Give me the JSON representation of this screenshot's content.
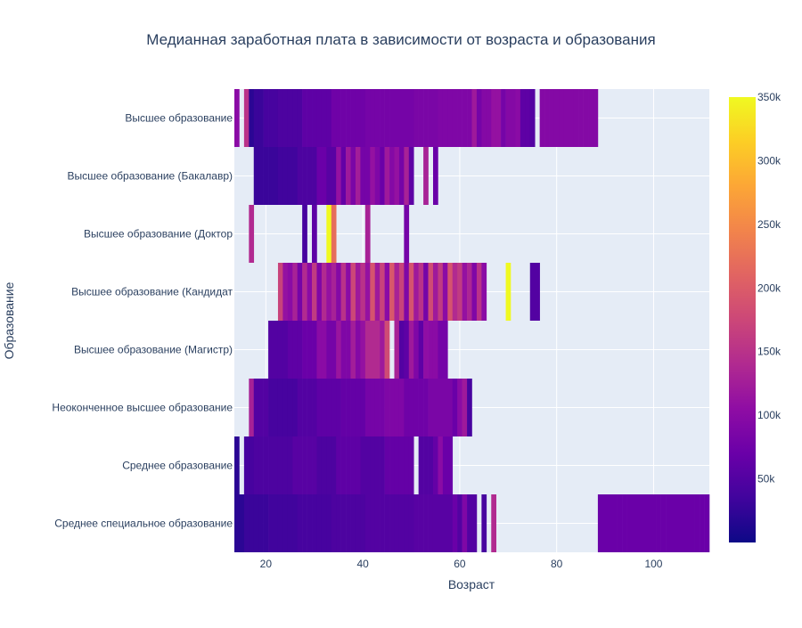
{
  "chart_data": {
    "type": "heatmap",
    "title": "Медианная заработная плата в зависимости от возраста и образования",
    "xlabel": "Возраст",
    "ylabel": "Образование",
    "xlim": [
      13.5,
      111.5
    ],
    "x_ticks": [
      20,
      40,
      60,
      80,
      100
    ],
    "categories": [
      "Высшее образование",
      "Высшее образование (Бакалавр)",
      "Высшее образование (Доктор",
      "Высшее образование (Кандидат",
      "Высшее образование (Магистр)",
      "Неоконченное высшее образование",
      "Среднее образование",
      "Среднее специальное образование"
    ],
    "colorbar": {
      "range": [
        0,
        350000
      ],
      "ticks": [
        50000,
        100000,
        150000,
        200000,
        250000,
        300000,
        350000
      ],
      "tick_labels": [
        "50k",
        "100k",
        "150k",
        "200k",
        "250k",
        "300k",
        "350k"
      ],
      "colorscale": "Plasma",
      "grid": true
    },
    "series": [
      {
        "segments": [
          [
            14,
            14,
            100000
          ],
          [
            16,
            16,
            150000
          ],
          [
            17,
            17,
            20000
          ],
          [
            18,
            19,
            30000
          ],
          [
            20,
            22,
            40000
          ],
          [
            23,
            27,
            45000
          ],
          [
            28,
            33,
            60000
          ],
          [
            34,
            40,
            75000
          ],
          [
            41,
            50,
            80000
          ],
          [
            51,
            55,
            85000
          ],
          [
            56,
            62,
            90000
          ],
          [
            63,
            63,
            120000
          ],
          [
            64,
            64,
            80000
          ],
          [
            65,
            66,
            95000
          ],
          [
            67,
            68,
            110000
          ],
          [
            69,
            69,
            80000
          ],
          [
            70,
            71,
            95000
          ],
          [
            72,
            72,
            100000
          ],
          [
            73,
            74,
            60000
          ],
          [
            75,
            75,
            50000
          ],
          [
            77,
            88,
            95000
          ]
        ]
      },
      {
        "segments": [
          [
            18,
            22,
            30000
          ],
          [
            23,
            26,
            35000
          ],
          [
            27,
            30,
            45000
          ],
          [
            31,
            32,
            70000
          ],
          [
            33,
            34,
            55000
          ],
          [
            35,
            35,
            110000
          ],
          [
            36,
            36,
            65000
          ],
          [
            37,
            37,
            120000
          ],
          [
            38,
            38,
            85000
          ],
          [
            39,
            39,
            125000
          ],
          [
            40,
            41,
            80000
          ],
          [
            42,
            42,
            110000
          ],
          [
            43,
            43,
            90000
          ],
          [
            44,
            44,
            70000
          ],
          [
            45,
            45,
            120000
          ],
          [
            46,
            46,
            95000
          ],
          [
            47,
            47,
            110000
          ],
          [
            48,
            48,
            80000
          ],
          [
            49,
            49,
            130000
          ],
          [
            50,
            50,
            60000
          ],
          [
            53,
            53,
            130000
          ],
          [
            55,
            55,
            70000
          ]
        ]
      },
      {
        "segments": [
          [
            17,
            17,
            140000
          ],
          [
            28,
            28,
            40000
          ],
          [
            30,
            30,
            60000
          ],
          [
            33,
            33,
            350000
          ],
          [
            34,
            34,
            220000
          ],
          [
            41,
            41,
            130000
          ],
          [
            49,
            49,
            80000
          ]
        ]
      },
      {
        "segments": [
          [
            23,
            23,
            170000
          ],
          [
            24,
            24,
            110000
          ],
          [
            25,
            25,
            100000
          ],
          [
            26,
            26,
            130000
          ],
          [
            27,
            27,
            80000
          ],
          [
            28,
            28,
            140000
          ],
          [
            29,
            29,
            100000
          ],
          [
            30,
            30,
            160000
          ],
          [
            31,
            31,
            90000
          ],
          [
            32,
            32,
            140000
          ],
          [
            33,
            33,
            110000
          ],
          [
            34,
            34,
            130000
          ],
          [
            35,
            35,
            95000
          ],
          [
            36,
            36,
            150000
          ],
          [
            37,
            37,
            100000
          ],
          [
            38,
            38,
            175000
          ],
          [
            39,
            39,
            120000
          ],
          [
            40,
            40,
            150000
          ],
          [
            41,
            41,
            110000
          ],
          [
            42,
            42,
            190000
          ],
          [
            43,
            43,
            120000
          ],
          [
            44,
            44,
            170000
          ],
          [
            45,
            45,
            100000
          ],
          [
            46,
            46,
            195000
          ],
          [
            47,
            47,
            130000
          ],
          [
            48,
            48,
            170000
          ],
          [
            49,
            49,
            90000
          ],
          [
            50,
            50,
            190000
          ],
          [
            51,
            51,
            120000
          ],
          [
            52,
            52,
            150000
          ],
          [
            53,
            53,
            80000
          ],
          [
            54,
            54,
            180000
          ],
          [
            55,
            55,
            120000
          ],
          [
            56,
            56,
            160000
          ],
          [
            57,
            57,
            100000
          ],
          [
            58,
            58,
            190000
          ],
          [
            59,
            59,
            140000
          ],
          [
            60,
            60,
            160000
          ],
          [
            61,
            61,
            110000
          ],
          [
            62,
            62,
            135000
          ],
          [
            63,
            63,
            90000
          ],
          [
            64,
            64,
            150000
          ],
          [
            65,
            65,
            100000
          ],
          [
            70,
            70,
            350000
          ],
          [
            75,
            76,
            50000
          ]
        ]
      },
      {
        "segments": [
          [
            21,
            24,
            50000
          ],
          [
            25,
            27,
            60000
          ],
          [
            28,
            30,
            70000
          ],
          [
            31,
            32,
            100000
          ],
          [
            33,
            34,
            80000
          ],
          [
            35,
            35,
            115000
          ],
          [
            36,
            37,
            90000
          ],
          [
            38,
            38,
            125000
          ],
          [
            39,
            39,
            95000
          ],
          [
            40,
            40,
            110000
          ],
          [
            41,
            43,
            140000
          ],
          [
            44,
            44,
            120000
          ],
          [
            45,
            45,
            180000
          ],
          [
            47,
            47,
            130000
          ],
          [
            48,
            48,
            50000
          ],
          [
            49,
            49,
            60000
          ],
          [
            50,
            50,
            120000
          ],
          [
            51,
            51,
            90000
          ],
          [
            52,
            52,
            60000
          ],
          [
            53,
            53,
            105000
          ],
          [
            54,
            55,
            100000
          ],
          [
            56,
            57,
            80000
          ]
        ]
      },
      {
        "segments": [
          [
            17,
            17,
            130000
          ],
          [
            18,
            20,
            50000
          ],
          [
            21,
            26,
            40000
          ],
          [
            27,
            30,
            50000
          ],
          [
            31,
            35,
            60000
          ],
          [
            36,
            40,
            65000
          ],
          [
            41,
            44,
            80000
          ],
          [
            45,
            48,
            90000
          ],
          [
            49,
            53,
            75000
          ],
          [
            54,
            58,
            85000
          ],
          [
            59,
            59,
            70000
          ],
          [
            60,
            60,
            100000
          ],
          [
            61,
            61,
            120000
          ],
          [
            62,
            62,
            40000
          ]
        ]
      },
      {
        "segments": [
          [
            14,
            14,
            20000
          ],
          [
            16,
            17,
            40000
          ],
          [
            18,
            25,
            45000
          ],
          [
            26,
            30,
            55000
          ],
          [
            31,
            34,
            45000
          ],
          [
            35,
            39,
            60000
          ],
          [
            40,
            44,
            50000
          ],
          [
            45,
            50,
            65000
          ],
          [
            52,
            54,
            50000
          ],
          [
            55,
            55,
            65000
          ],
          [
            56,
            56,
            100000
          ],
          [
            57,
            58,
            70000
          ]
        ]
      },
      {
        "segments": [
          [
            14,
            15,
            20000
          ],
          [
            16,
            20,
            30000
          ],
          [
            21,
            26,
            35000
          ],
          [
            27,
            33,
            40000
          ],
          [
            34,
            40,
            45000
          ],
          [
            41,
            50,
            50000
          ],
          [
            51,
            58,
            55000
          ],
          [
            59,
            59,
            70000
          ],
          [
            60,
            60,
            50000
          ],
          [
            61,
            61,
            90000
          ],
          [
            62,
            63,
            50000
          ],
          [
            65,
            65,
            40000
          ],
          [
            67,
            67,
            140000
          ],
          [
            89,
            111,
            70000
          ]
        ]
      }
    ]
  }
}
